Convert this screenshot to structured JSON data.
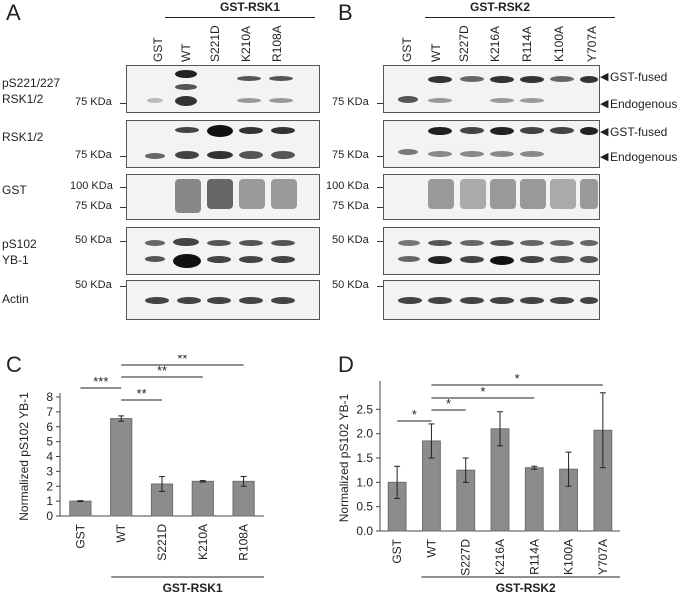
{
  "panels": {
    "A": "A",
    "B": "B",
    "C": "C",
    "D": "D"
  },
  "blotA": {
    "construct": "GST-RSK1",
    "lanes": [
      "GST",
      "WT",
      "S221D",
      "K210A",
      "R108A"
    ],
    "rows": [
      {
        "label": "pS221/227\nRSK1/2",
        "markers": [
          "75 KDa"
        ]
      },
      {
        "label": "RSK1/2",
        "markers": [
          "75 KDa"
        ]
      },
      {
        "label": "GST",
        "markers": [
          "100 KDa",
          "75 KDa"
        ]
      },
      {
        "label": "pS102\nYB-1",
        "markers": [
          "50 KDa"
        ]
      },
      {
        "label": "Actin",
        "markers": [
          "50 KDa"
        ]
      }
    ]
  },
  "blotB": {
    "construct": "GST-RSK2",
    "lanes": [
      "GST",
      "WT",
      "S227D",
      "K216A",
      "R114A",
      "K100A",
      "Y707A"
    ],
    "row_markers": [
      [
        "75 KDa"
      ],
      [
        "75 KDa"
      ],
      [
        "100 KDa",
        "75 KDa"
      ],
      [
        "50 KDa"
      ],
      [
        "50 KDa"
      ]
    ],
    "annotations": {
      "fused": "GST-fused",
      "endogenous": "Endogenous"
    }
  },
  "chart_data": [
    {
      "type": "bar",
      "panel": "C",
      "categories": [
        "GST",
        "WT",
        "S221D",
        "K210A",
        "R108A"
      ],
      "values": [
        1.0,
        6.55,
        2.15,
        2.33,
        2.33
      ],
      "errors": [
        0.03,
        0.18,
        0.5,
        0.05,
        0.33
      ],
      "xlabel": "GST-RSK1",
      "ylabel": "Normalized pS102 YB-1",
      "ylim": [
        0,
        8
      ],
      "yticks": [
        "0",
        "1",
        "2",
        "3",
        "4",
        "5",
        "6",
        "7",
        "8"
      ],
      "significance": [
        {
          "from": "GST",
          "to": "WT",
          "label": "***"
        },
        {
          "from": "WT",
          "to": "S221D",
          "label": "**"
        },
        {
          "from": "WT",
          "to": "K210A",
          "label": "**"
        },
        {
          "from": "WT",
          "to": "R108A",
          "label": "**"
        }
      ]
    },
    {
      "type": "bar",
      "panel": "D",
      "categories": [
        "GST",
        "WT",
        "S227D",
        "K216A",
        "R114A",
        "K100A",
        "Y707A"
      ],
      "values": [
        1.0,
        1.85,
        1.25,
        2.1,
        1.3,
        1.27,
        2.07
      ],
      "errors": [
        0.33,
        0.35,
        0.25,
        0.35,
        0.03,
        0.35,
        0.77
      ],
      "xlabel": "GST-RSK2",
      "ylabel": "Normalized pS102 YB-1",
      "ylim": [
        0,
        3.0
      ],
      "yticks": [
        "0.0",
        "0.5",
        "1.0",
        "1.5",
        "2.0",
        "2.5"
      ],
      "significance": [
        {
          "from": "GST",
          "to": "WT",
          "label": "*"
        },
        {
          "from": "WT",
          "to": "S227D",
          "label": "*"
        },
        {
          "from": "WT",
          "to": "R114A",
          "label": "*"
        },
        {
          "from": "WT",
          "to": "Y707A",
          "label": "*"
        }
      ]
    }
  ]
}
